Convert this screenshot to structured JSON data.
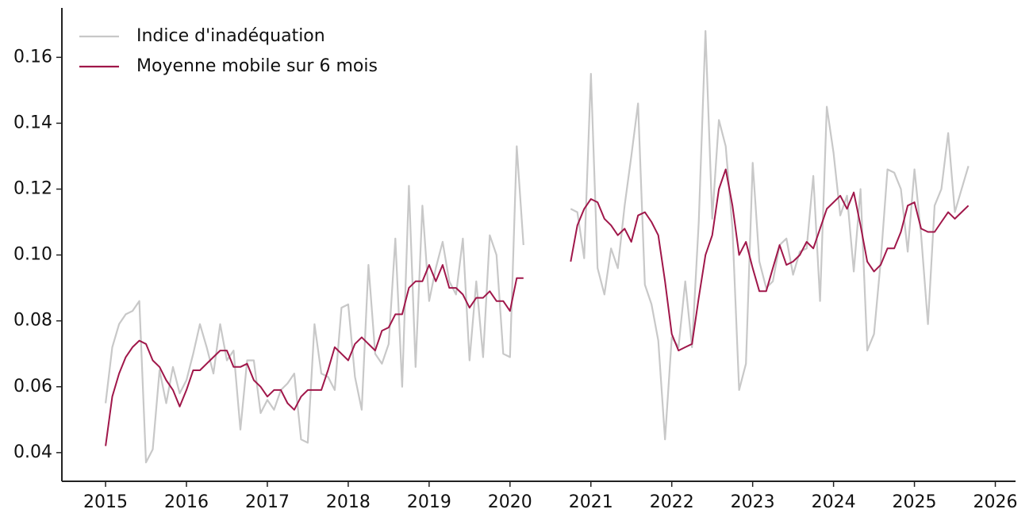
{
  "chart_data": {
    "type": "line",
    "x": [
      2015,
      2015.083,
      2015.167,
      2015.25,
      2015.333,
      2015.417,
      2015.5,
      2015.583,
      2015.667,
      2015.75,
      2015.833,
      2015.917,
      2016,
      2016.083,
      2016.167,
      2016.25,
      2016.333,
      2016.417,
      2016.5,
      2016.583,
      2016.667,
      2016.75,
      2016.833,
      2016.917,
      2017,
      2017.083,
      2017.167,
      2017.25,
      2017.333,
      2017.417,
      2017.5,
      2017.583,
      2017.667,
      2017.75,
      2017.833,
      2017.917,
      2018,
      2018.083,
      2018.167,
      2018.25,
      2018.333,
      2018.417,
      2018.5,
      2018.583,
      2018.667,
      2018.75,
      2018.833,
      2018.917,
      2019,
      2019.083,
      2019.167,
      2019.25,
      2019.333,
      2019.417,
      2019.5,
      2019.583,
      2019.667,
      2019.75,
      2019.833,
      2019.917,
      2020,
      2020.083,
      2020.167,
      2020.25,
      2020.333,
      2020.417,
      2020.5,
      2020.583,
      2020.667,
      2020.75,
      2020.833,
      2020.917,
      2021,
      2021.083,
      2021.167,
      2021.25,
      2021.333,
      2021.417,
      2021.5,
      2021.583,
      2021.667,
      2021.75,
      2021.833,
      2021.917,
      2022,
      2022.083,
      2022.167,
      2022.25,
      2022.333,
      2022.417,
      2022.5,
      2022.583,
      2022.667,
      2022.75,
      2022.833,
      2022.917,
      2023,
      2023.083,
      2023.167,
      2023.25,
      2023.333,
      2023.417,
      2023.5,
      2023.583,
      2023.667,
      2023.75,
      2023.833,
      2023.917,
      2024,
      2024.083,
      2024.167,
      2024.25,
      2024.333,
      2024.417,
      2024.5,
      2024.583,
      2024.667,
      2024.75,
      2024.833,
      2024.917,
      2025,
      2025.083,
      2025.167,
      2025.25,
      2025.333,
      2025.417,
      2025.5,
      2025.583,
      2025.667
    ],
    "series": [
      {
        "name": "Indice d'inadéquation",
        "color": "#c8c8c8",
        "values": [
          0.055,
          0.072,
          0.079,
          0.082,
          0.083,
          0.086,
          0.037,
          0.041,
          0.065,
          0.055,
          0.066,
          0.058,
          0.062,
          0.07,
          0.079,
          0.072,
          0.064,
          0.079,
          0.068,
          0.071,
          0.047,
          0.068,
          0.068,
          0.052,
          0.056,
          0.053,
          0.059,
          0.061,
          0.064,
          0.044,
          0.043,
          0.079,
          0.064,
          0.063,
          0.059,
          0.084,
          0.085,
          0.063,
          0.053,
          0.097,
          0.07,
          0.067,
          0.073,
          0.105,
          0.06,
          0.121,
          0.066,
          0.115,
          0.086,
          0.096,
          0.104,
          0.092,
          0.088,
          0.105,
          0.068,
          0.092,
          0.069,
          0.106,
          0.1,
          0.07,
          0.069,
          0.133,
          0.103,
          null,
          null,
          null,
          null,
          null,
          null,
          0.114,
          0.113,
          0.099,
          0.155,
          0.096,
          0.088,
          0.102,
          0.096,
          0.115,
          0.13,
          0.146,
          0.091,
          0.085,
          0.074,
          0.044,
          0.075,
          0.072,
          0.092,
          0.072,
          0.11,
          0.168,
          0.111,
          0.141,
          0.133,
          0.108,
          0.059,
          0.067,
          0.128,
          0.098,
          0.09,
          0.092,
          0.103,
          0.105,
          0.094,
          0.101,
          0.102,
          0.124,
          0.086,
          0.145,
          0.131,
          0.112,
          0.118,
          0.095,
          0.12,
          0.071,
          0.076,
          0.098,
          0.126,
          0.125,
          0.12,
          0.101,
          0.126,
          0.106,
          0.079,
          0.115,
          0.12,
          0.137,
          0.113,
          0.12,
          0.127
        ]
      },
      {
        "name": "Moyenne mobile sur 6 mois",
        "color": "#a0174a",
        "values": [
          0.042,
          0.057,
          0.064,
          0.069,
          0.072,
          0.074,
          0.073,
          0.068,
          0.066,
          0.062,
          0.059,
          0.054,
          0.059,
          0.065,
          0.065,
          0.067,
          0.069,
          0.071,
          0.071,
          0.066,
          0.066,
          0.067,
          0.062,
          0.06,
          0.057,
          0.059,
          0.059,
          0.055,
          0.053,
          0.057,
          0.059,
          0.059,
          0.059,
          0.065,
          0.072,
          0.07,
          0.068,
          0.073,
          0.075,
          0.073,
          0.071,
          0.077,
          0.078,
          0.082,
          0.082,
          0.09,
          0.092,
          0.092,
          0.097,
          0.092,
          0.097,
          0.09,
          0.09,
          0.088,
          0.084,
          0.087,
          0.087,
          0.089,
          0.086,
          0.086,
          0.083,
          0.093,
          0.093,
          null,
          null,
          null,
          null,
          null,
          null,
          0.098,
          0.109,
          0.114,
          0.117,
          0.116,
          0.111,
          0.109,
          0.106,
          0.108,
          0.104,
          0.112,
          0.113,
          0.11,
          0.106,
          0.092,
          0.076,
          0.071,
          0.072,
          0.073,
          0.087,
          0.1,
          0.106,
          0.12,
          0.126,
          0.115,
          0.1,
          0.104,
          0.096,
          0.089,
          0.089,
          0.096,
          0.103,
          0.097,
          0.098,
          0.1,
          0.104,
          0.102,
          0.108,
          0.114,
          0.116,
          0.118,
          0.114,
          0.119,
          0.109,
          0.098,
          0.095,
          0.097,
          0.102,
          0.102,
          0.107,
          0.115,
          0.116,
          0.108,
          0.107,
          0.107,
          0.11,
          0.113,
          0.111,
          0.113,
          0.115
        ]
      }
    ],
    "xlim": [
      2014.46,
      2026.25
    ],
    "xticks": [
      2015,
      2016,
      2017,
      2018,
      2019,
      2020,
      2021,
      2022,
      2023,
      2024,
      2025,
      2026
    ],
    "ylim": [
      0.0313,
      0.175
    ],
    "yticks": [
      0.04,
      0.06,
      0.08,
      {
        "value": 0.1,
        "label": "0.10"
      },
      0.12,
      0.14,
      0.16
    ],
    "grid": false,
    "legend": "upper left"
  }
}
